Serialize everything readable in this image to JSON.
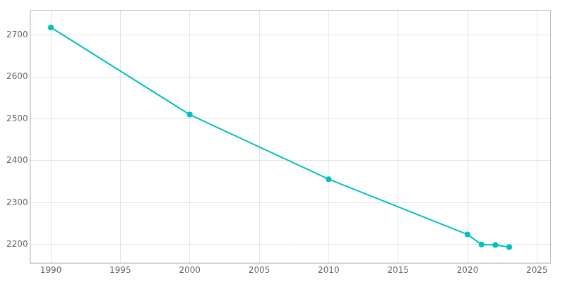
{
  "chart_data": {
    "type": "line",
    "x": [
      1990,
      2000,
      2010,
      2020,
      2021,
      2022,
      2023
    ],
    "values": [
      2718,
      2510,
      2356,
      2224,
      2200,
      2199,
      2194
    ],
    "color": "#00c0c0",
    "marker": "circle",
    "xlim": [
      1988.5,
      2026
    ],
    "ylim": [
      2155,
      2760
    ],
    "xticks": [
      1990,
      1995,
      2000,
      2005,
      2010,
      2015,
      2020,
      2025
    ],
    "yticks": [
      2200,
      2300,
      2400,
      2500,
      2600,
      2700
    ],
    "grid": true
  }
}
